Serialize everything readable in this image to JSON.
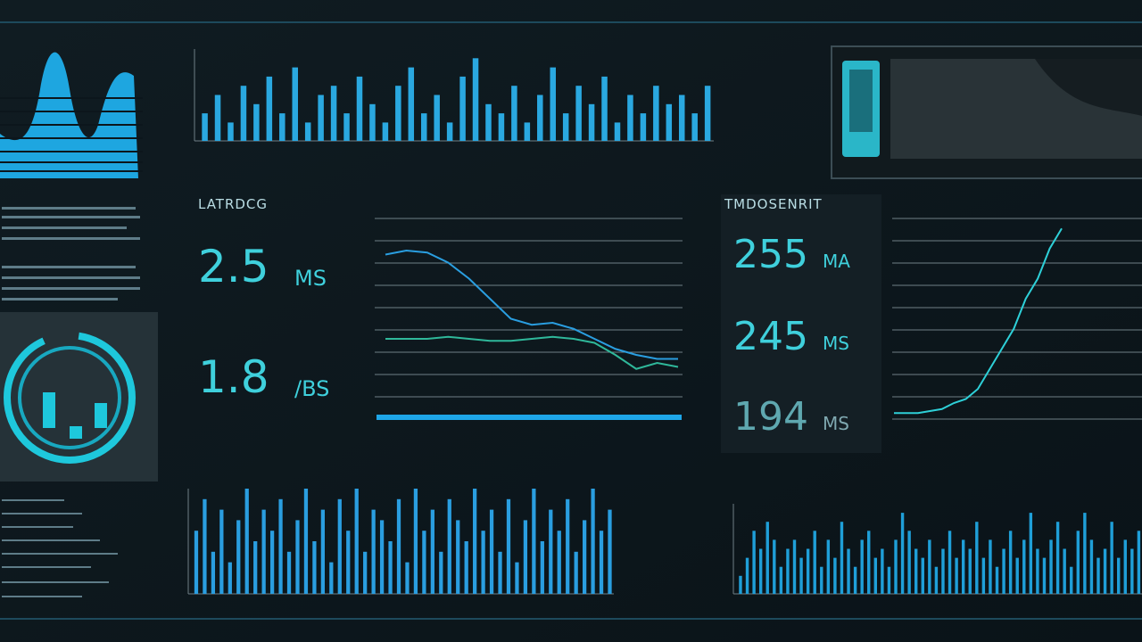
{
  "latency": {
    "title": "LATRDCG",
    "metrics": [
      {
        "value": 2.5,
        "unit": "MS"
      },
      {
        "value": 1.8,
        "unit": "/BS"
      }
    ]
  },
  "throughput": {
    "title": "TMDOSENRIT",
    "metrics": [
      {
        "value": 255,
        "unit": "MA"
      },
      {
        "value": 245,
        "unit": "MS"
      },
      {
        "value": 194,
        "unit": "MS"
      }
    ]
  },
  "charts": [
    {
      "type": "bar",
      "color": "#2aa8e0",
      "ylim": [
        0,
        10
      ],
      "values": [
        3,
        5,
        2,
        6,
        4,
        7,
        3,
        8,
        2,
        5,
        6,
        3,
        7,
        4,
        2,
        6,
        8,
        3,
        5,
        2,
        7,
        9,
        4,
        3,
        6,
        2,
        5,
        8,
        3,
        6,
        4,
        7,
        2,
        5,
        3,
        6,
        4,
        5,
        3,
        6
      ]
    },
    {
      "type": "line",
      "ylim": [
        0,
        10
      ],
      "series": [
        {
          "color": "#2a9ee0",
          "values": [
            8.2,
            8.4,
            8.3,
            7.8,
            7.0,
            6.0,
            5.0,
            4.7,
            4.8,
            4.5,
            4.0,
            3.5,
            3.2,
            3.0,
            3.0
          ]
        },
        {
          "color": "#2fb89a",
          "values": [
            4.0,
            4.0,
            4.0,
            4.1,
            4.0,
            3.9,
            3.9,
            4.0,
            4.1,
            4.0,
            3.8,
            3.2,
            2.5,
            2.8,
            2.6
          ]
        }
      ]
    },
    {
      "type": "line",
      "ylim": [
        0,
        10
      ],
      "series": [
        {
          "color": "#2ed0d8",
          "values": [
            0.3,
            0.3,
            0.3,
            0.4,
            0.5,
            0.8,
            1.0,
            1.5,
            2.5,
            3.5,
            4.5,
            6,
            7,
            8.5,
            9.5
          ]
        }
      ]
    },
    {
      "type": "bar",
      "color": "#2a9ee0",
      "ylim": [
        0,
        10
      ],
      "values": [
        6,
        9,
        4,
        8,
        3,
        7,
        10,
        5,
        8,
        6,
        9,
        4,
        7,
        10,
        5,
        8,
        3,
        9,
        6,
        10,
        4,
        8,
        7,
        5,
        9,
        3,
        10,
        6,
        8,
        4,
        9,
        7,
        5,
        10,
        6,
        8,
        4,
        9,
        3,
        7,
        10,
        5,
        8,
        6,
        9,
        4,
        7,
        10,
        6,
        8
      ]
    },
    {
      "type": "bar",
      "color": "#1f9fd8",
      "ylim": [
        0,
        10
      ],
      "values": [
        2,
        4,
        7,
        5,
        8,
        6,
        3,
        5,
        6,
        4,
        5,
        7,
        3,
        6,
        4,
        8,
        5,
        3,
        6,
        7,
        4,
        5,
        3,
        6,
        9,
        7,
        5,
        4,
        6,
        3,
        5,
        7,
        4,
        6,
        5,
        8,
        4,
        6,
        3,
        5,
        7,
        4,
        6,
        9,
        5,
        4,
        6,
        8,
        5,
        3,
        7,
        9,
        6,
        4,
        5,
        8,
        4,
        6,
        5,
        7
      ]
    }
  ]
}
